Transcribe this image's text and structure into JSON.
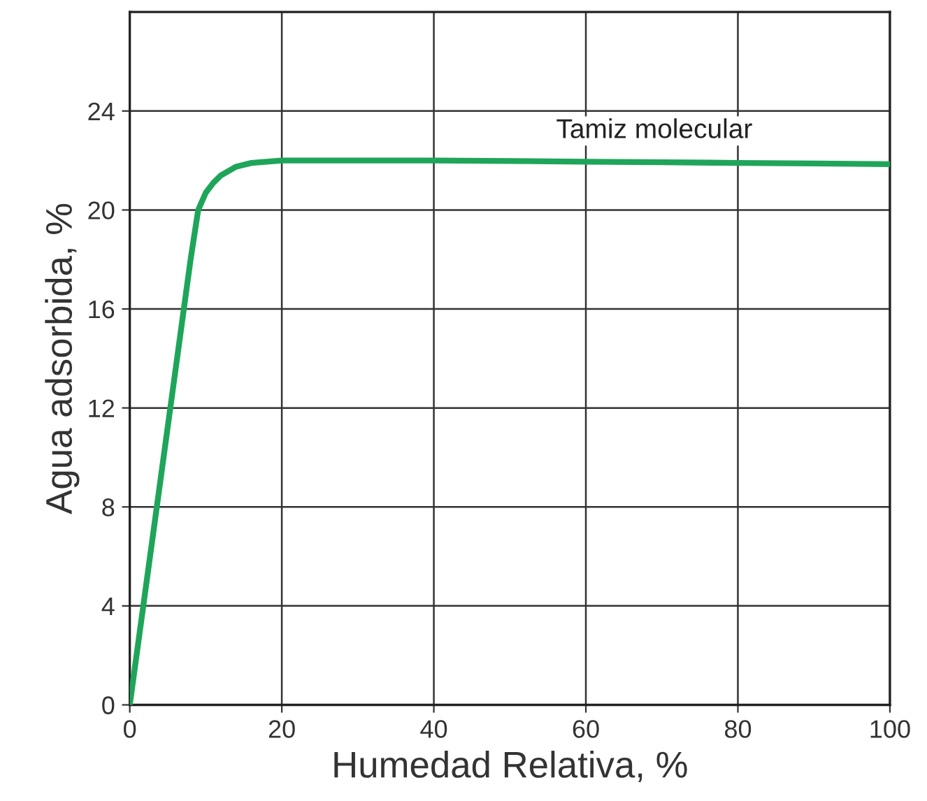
{
  "chart_data": {
    "type": "line",
    "xlabel": "Humedad Relativa, %",
    "ylabel": "Agua adsorbida, %",
    "x": [
      0,
      2,
      4,
      6,
      8,
      9,
      10,
      11,
      12,
      14,
      16,
      18,
      20,
      30,
      40,
      50,
      60,
      70,
      80,
      90,
      100
    ],
    "series": [
      {
        "color": "#1fa55a",
        "values": [
          0,
          4.5,
          9,
          13.5,
          18,
          20,
          20.7,
          21.1,
          21.4,
          21.75,
          21.9,
          21.95,
          22,
          22,
          22,
          21.98,
          21.95,
          21.93,
          21.9,
          21.88,
          21.85
        ]
      }
    ],
    "annotations": [
      "Tamiz molecular"
    ],
    "xlim": [
      0,
      100
    ],
    "ylim": [
      0,
      28
    ],
    "xticks": [
      0,
      20,
      40,
      60,
      80,
      100
    ],
    "yticks": [
      0,
      4,
      8,
      12,
      16,
      20,
      24
    ],
    "grid": true,
    "marker": "none",
    "line_style": "solid",
    "legend": false
  }
}
